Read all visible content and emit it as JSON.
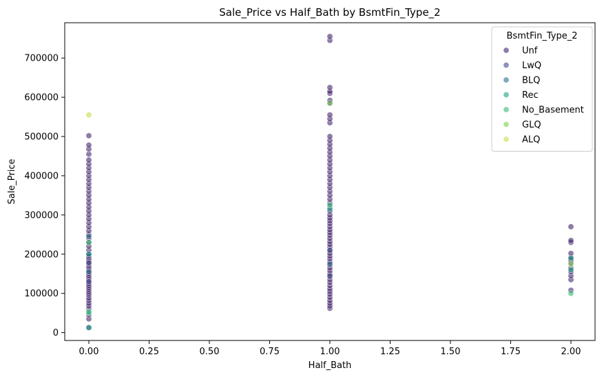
{
  "chart_data": {
    "type": "scatter",
    "title": "Sale_Price vs Half_Bath by BsmtFin_Type_2",
    "xlabel": "Half_Bath",
    "ylabel": "Sale_Price",
    "xlim": [
      -0.1,
      2.1
    ],
    "ylim": [
      -20000,
      790000
    ],
    "x_ticks": [
      "0.00",
      "0.25",
      "0.50",
      "0.75",
      "1.00",
      "1.25",
      "1.50",
      "1.75",
      "2.00"
    ],
    "y_ticks": [
      "0",
      "100000",
      "200000",
      "300000",
      "400000",
      "500000",
      "600000",
      "700000"
    ],
    "grid": false,
    "legend": {
      "title": "BsmtFin_Type_2",
      "placement": "top-right"
    },
    "series": [
      {
        "name": "Unf",
        "color": "#45266e",
        "points": [
          [
            0,
            12789
          ],
          [
            0,
            35000
          ],
          [
            0,
            45000
          ],
          [
            0,
            60000
          ],
          [
            0,
            68000
          ],
          [
            0,
            75000
          ],
          [
            0,
            82000
          ],
          [
            0,
            88000
          ],
          [
            0,
            95000
          ],
          [
            0,
            100000
          ],
          [
            0,
            105000
          ],
          [
            0,
            110000
          ],
          [
            0,
            115000
          ],
          [
            0,
            120000
          ],
          [
            0,
            125000
          ],
          [
            0,
            130000
          ],
          [
            0,
            135000
          ],
          [
            0,
            140000
          ],
          [
            0,
            145000
          ],
          [
            0,
            150000
          ],
          [
            0,
            155000
          ],
          [
            0,
            160000
          ],
          [
            0,
            165000
          ],
          [
            0,
            170000
          ],
          [
            0,
            175000
          ],
          [
            0,
            180000
          ],
          [
            0,
            185000
          ],
          [
            0,
            190000
          ],
          [
            0,
            195000
          ],
          [
            0,
            200000
          ],
          [
            0,
            210000
          ],
          [
            0,
            220000
          ],
          [
            0,
            230000
          ],
          [
            0,
            240000
          ],
          [
            0,
            250000
          ],
          [
            0,
            260000
          ],
          [
            0,
            270000
          ],
          [
            0,
            280000
          ],
          [
            0,
            290000
          ],
          [
            0,
            300000
          ],
          [
            0,
            310000
          ],
          [
            0,
            320000
          ],
          [
            0,
            330000
          ],
          [
            0,
            340000
          ],
          [
            0,
            350000
          ],
          [
            0,
            360000
          ],
          [
            0,
            370000
          ],
          [
            0,
            380000
          ],
          [
            0,
            390000
          ],
          [
            0,
            400000
          ],
          [
            0,
            410000
          ],
          [
            0,
            420000
          ],
          [
            0,
            430000
          ],
          [
            0,
            440000
          ],
          [
            0,
            455000
          ],
          [
            0,
            468000
          ],
          [
            0,
            478000
          ],
          [
            0,
            502000
          ],
          [
            1,
            62000
          ],
          [
            1,
            68000
          ],
          [
            1,
            75000
          ],
          [
            1,
            82000
          ],
          [
            1,
            90000
          ],
          [
            1,
            98000
          ],
          [
            1,
            105000
          ],
          [
            1,
            112000
          ],
          [
            1,
            120000
          ],
          [
            1,
            128000
          ],
          [
            1,
            135000
          ],
          [
            1,
            142000
          ],
          [
            1,
            150000
          ],
          [
            1,
            158000
          ],
          [
            1,
            165000
          ],
          [
            1,
            172000
          ],
          [
            1,
            180000
          ],
          [
            1,
            188000
          ],
          [
            1,
            195000
          ],
          [
            1,
            202000
          ],
          [
            1,
            210000
          ],
          [
            1,
            218000
          ],
          [
            1,
            225000
          ],
          [
            1,
            232000
          ],
          [
            1,
            240000
          ],
          [
            1,
            248000
          ],
          [
            1,
            255000
          ],
          [
            1,
            262000
          ],
          [
            1,
            270000
          ],
          [
            1,
            278000
          ],
          [
            1,
            285000
          ],
          [
            1,
            292000
          ],
          [
            1,
            300000
          ],
          [
            1,
            310000
          ],
          [
            1,
            320000
          ],
          [
            1,
            330000
          ],
          [
            1,
            340000
          ],
          [
            1,
            350000
          ],
          [
            1,
            360000
          ],
          [
            1,
            370000
          ],
          [
            1,
            380000
          ],
          [
            1,
            390000
          ],
          [
            1,
            400000
          ],
          [
            1,
            410000
          ],
          [
            1,
            420000
          ],
          [
            1,
            430000
          ],
          [
            1,
            440000
          ],
          [
            1,
            450000
          ],
          [
            1,
            460000
          ],
          [
            1,
            470000
          ],
          [
            1,
            480000
          ],
          [
            1,
            490000
          ],
          [
            1,
            500000
          ],
          [
            1,
            535000
          ],
          [
            1,
            545000
          ],
          [
            1,
            555000
          ],
          [
            1,
            585000
          ],
          [
            1,
            592000
          ],
          [
            1,
            610000
          ],
          [
            1,
            615000
          ],
          [
            1,
            625000
          ],
          [
            1,
            745000
          ],
          [
            1,
            755000
          ],
          [
            2,
            108000
          ],
          [
            2,
            135000
          ],
          [
            2,
            145000
          ],
          [
            2,
            155000
          ],
          [
            2,
            165000
          ],
          [
            2,
            178000
          ],
          [
            2,
            185000
          ],
          [
            2,
            192000
          ],
          [
            2,
            202000
          ],
          [
            2,
            230000
          ],
          [
            2,
            235000
          ],
          [
            2,
            270000
          ]
        ]
      },
      {
        "name": "LwQ",
        "color": "#3f4a8a",
        "points": [
          [
            0,
            130000
          ],
          [
            0,
            178000
          ],
          [
            1,
            210000
          ],
          [
            1,
            145000
          ]
        ]
      },
      {
        "name": "BLQ",
        "color": "#2e6d8e",
        "points": [
          [
            0,
            155000
          ],
          [
            0,
            245000
          ],
          [
            1,
            175000
          ]
        ]
      },
      {
        "name": "Rec",
        "color": "#1f9e89",
        "points": [
          [
            0,
            12789
          ],
          [
            0,
            50000
          ],
          [
            0,
            200000
          ],
          [
            1,
            315000
          ],
          [
            2,
            190000
          ],
          [
            2,
            160000
          ]
        ]
      },
      {
        "name": "No_Basement",
        "color": "#3bbb75",
        "points": [
          [
            0,
            230000
          ],
          [
            0,
            53000
          ],
          [
            2,
            100000
          ],
          [
            1,
            325000
          ]
        ]
      },
      {
        "name": "GLQ",
        "color": "#7ad151",
        "points": [
          [
            1,
            585000
          ],
          [
            2,
            175000
          ]
        ]
      },
      {
        "name": "ALQ",
        "color": "#c3e04a",
        "points": [
          [
            0,
            555000
          ]
        ]
      }
    ]
  }
}
